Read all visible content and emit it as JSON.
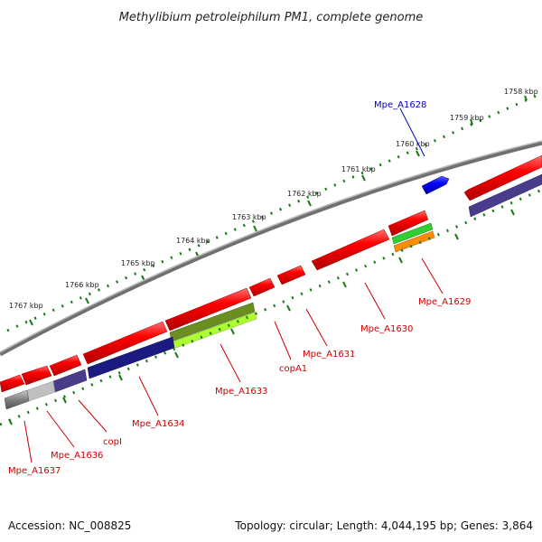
{
  "title": "Methylibium petroleiphilum PM1, complete genome",
  "footer": {
    "accession": "Accession: NC_008825",
    "summary": "Topology: circular; Length: 4,044,195 bp; Genes: 3,864"
  },
  "ticks": [
    "1758 kbp",
    "1759 kbp",
    "1760 kbp",
    "1761 kbp",
    "1762 kbp",
    "1763 kbp",
    "1764 kbp",
    "1765 kbp",
    "1766 kbp",
    "1767 kbp"
  ],
  "genes": [
    {
      "label": "Mpe_A1628",
      "color": "#0000cc"
    },
    {
      "label": "Mpe_A1629",
      "color": "#cc0000"
    },
    {
      "label": "Mpe_A1630",
      "color": "#cc0000"
    },
    {
      "label": "Mpe_A1631",
      "color": "#cc0000"
    },
    {
      "label": "copA1",
      "color": "#cc0000"
    },
    {
      "label": "Mpe_A1633",
      "color": "#cc0000"
    },
    {
      "label": "Mpe_A1634",
      "color": "#cc0000"
    },
    {
      "label": "copI",
      "color": "#cc0000"
    },
    {
      "label": "Mpe_A1636",
      "color": "#cc0000"
    },
    {
      "label": "Mpe_A1637",
      "color": "#cc0000"
    }
  ],
  "colors": {
    "cds_forward": "#ff0000",
    "cds_highlight": "#0000ff",
    "backbone": "#808080",
    "dots": "#1a7a1a",
    "domain_navy": "#1a1a80",
    "domain_olive": "#6b8e23",
    "domain_lime": "#adff2f",
    "domain_green": "#32cd32",
    "domain_orange": "#ff8c00",
    "domain_purple": "#483d8b",
    "domain_grey": "#707070",
    "domain_lightgrey": "#c0c0c0"
  }
}
